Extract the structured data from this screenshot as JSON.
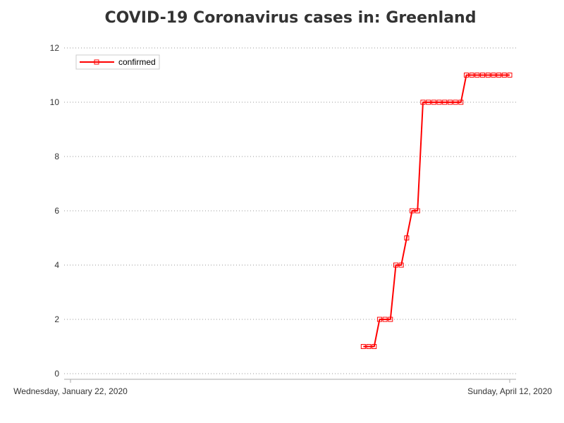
{
  "chart_data": {
    "type": "line",
    "title": "COVID-19 Coronavirus cases in: Greenland",
    "xlabel": "",
    "ylabel": "",
    "x_axis": {
      "type": "date",
      "range": [
        "2020-01-22",
        "2020-04-12"
      ],
      "tick_labels": [
        "Wednesday, January 22, 2020",
        "Sunday, April 12, 2020"
      ]
    },
    "ylim": [
      0,
      12
    ],
    "y_ticks": [
      0,
      2,
      4,
      6,
      8,
      10,
      12
    ],
    "grid": "horizontal dotted",
    "legend": {
      "placement": "top-left",
      "entries": [
        "confirmed"
      ]
    },
    "series": [
      {
        "name": "confirmed",
        "color": "#ff0000",
        "marker": "square",
        "points": [
          {
            "x": "2020-03-16",
            "y": 1
          },
          {
            "x": "2020-03-17",
            "y": 1
          },
          {
            "x": "2020-03-18",
            "y": 1
          },
          {
            "x": "2020-03-19",
            "y": 2
          },
          {
            "x": "2020-03-20",
            "y": 2
          },
          {
            "x": "2020-03-21",
            "y": 2
          },
          {
            "x": "2020-03-22",
            "y": 4
          },
          {
            "x": "2020-03-23",
            "y": 4
          },
          {
            "x": "2020-03-24",
            "y": 5
          },
          {
            "x": "2020-03-25",
            "y": 6
          },
          {
            "x": "2020-03-26",
            "y": 6
          },
          {
            "x": "2020-03-27",
            "y": 10
          },
          {
            "x": "2020-03-28",
            "y": 10
          },
          {
            "x": "2020-03-29",
            "y": 10
          },
          {
            "x": "2020-03-30",
            "y": 10
          },
          {
            "x": "2020-03-31",
            "y": 10
          },
          {
            "x": "2020-04-01",
            "y": 10
          },
          {
            "x": "2020-04-02",
            "y": 10
          },
          {
            "x": "2020-04-03",
            "y": 10
          },
          {
            "x": "2020-04-04",
            "y": 11
          },
          {
            "x": "2020-04-05",
            "y": 11
          },
          {
            "x": "2020-04-06",
            "y": 11
          },
          {
            "x": "2020-04-07",
            "y": 11
          },
          {
            "x": "2020-04-08",
            "y": 11
          },
          {
            "x": "2020-04-09",
            "y": 11
          },
          {
            "x": "2020-04-10",
            "y": 11
          },
          {
            "x": "2020-04-11",
            "y": 11
          },
          {
            "x": "2020-04-12",
            "y": 11
          }
        ]
      }
    ]
  }
}
